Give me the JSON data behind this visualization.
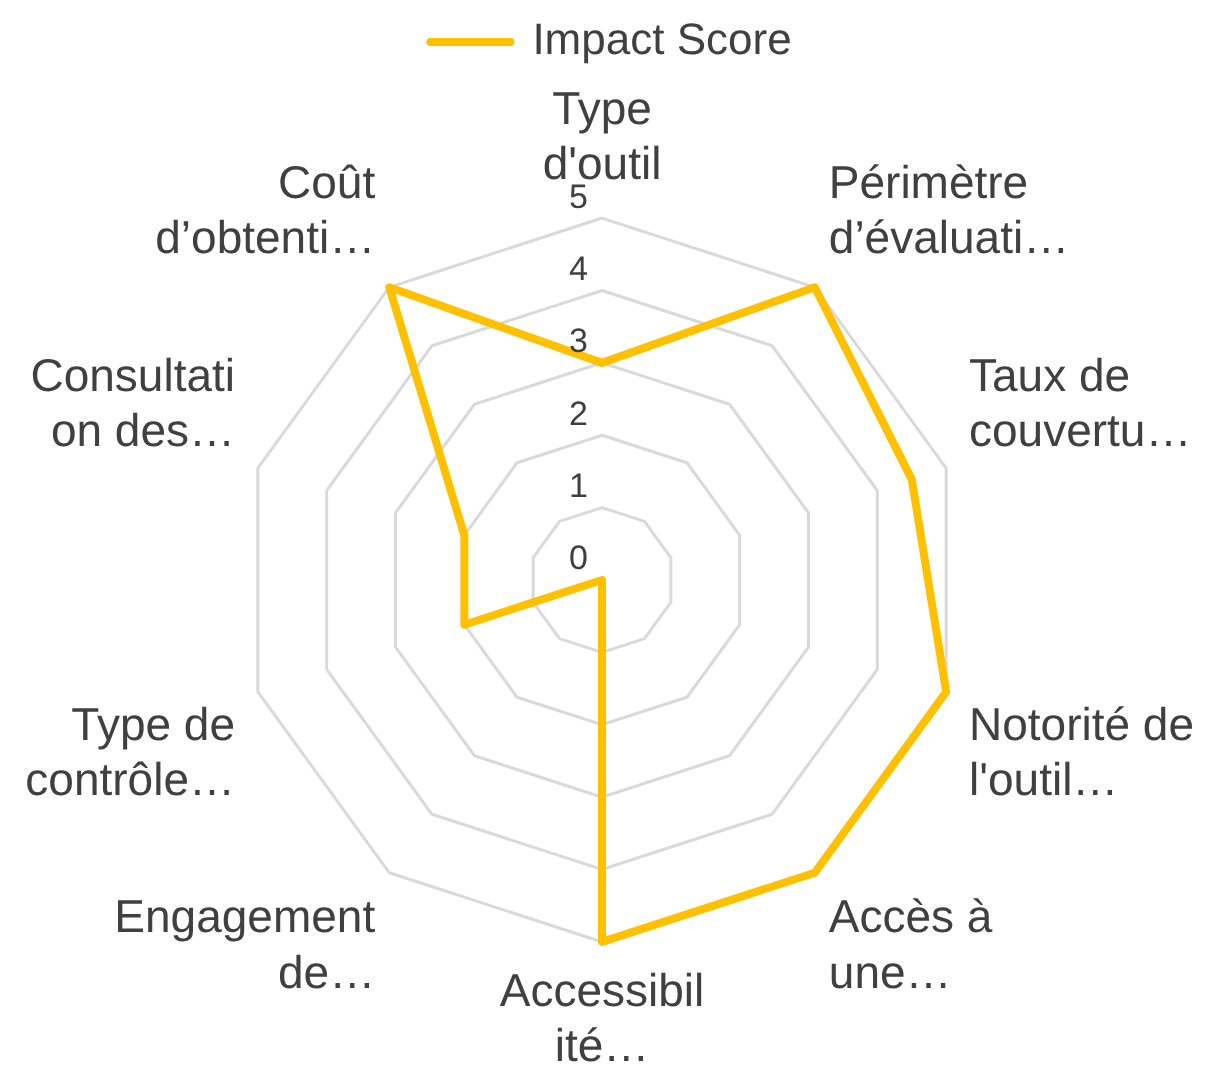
{
  "chart_data": {
    "type": "radar",
    "categories": [
      "Type d'outil",
      "Périmètre d’évaluati…",
      "Taux de couvertu…",
      "Notorité de l'outil…",
      "Accès à une…",
      "Accessibilité…",
      "Engagement de…",
      "Type de contrôle…",
      "Consultation des…",
      "Coût d’obtenti…"
    ],
    "series": [
      {
        "name": "Impact Score",
        "color": "#ffc000",
        "values": [
          3,
          5,
          4.5,
          5,
          5,
          5,
          0,
          2,
          2,
          5
        ]
      }
    ],
    "ylim": [
      0,
      5
    ],
    "yticks": [
      0,
      1,
      2,
      3,
      4,
      5
    ],
    "grid": true,
    "legend": "top",
    "marker": "none",
    "line_style": "solid"
  }
}
